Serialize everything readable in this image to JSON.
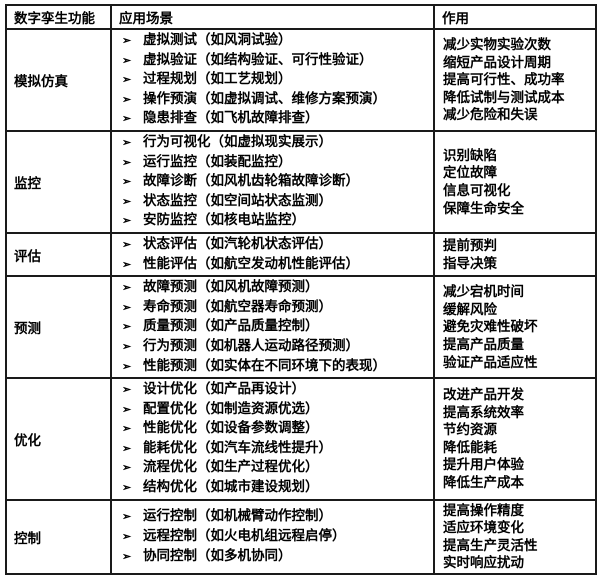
{
  "table": {
    "headers": [
      "数字孪生功能",
      "应用场景",
      "作用"
    ],
    "bullet": "➢",
    "rows": [
      {
        "function": "模拟仿真",
        "scenarios": [
          "虚拟测试（如风洞试验）",
          "虚拟验证（如结构验证、可行性验证）",
          "过程规划（如工艺规划）",
          "操作预演（如虚拟调试、维修方案预演）",
          "隐患排查（如飞机故障排查）"
        ],
        "effects": [
          "减少实物实验次数",
          "缩短产品设计周期",
          "提高可行性、成功率",
          "降低试制与测试成本",
          "减少危险和失误"
        ]
      },
      {
        "function": "监控",
        "scenarios": [
          "行为可视化（如虚拟现实展示）",
          "运行监控（如装配监控）",
          "故障诊断（如风机齿轮箱故障诊断）",
          "状态监控（如空间站状态监测）",
          "安防监控（如核电站监控）"
        ],
        "effects": [
          "识别缺陷",
          "定位故障",
          "信息可视化",
          "保障生命安全"
        ]
      },
      {
        "function": "评估",
        "scenarios": [
          "状态评估（如汽轮机状态评估）",
          "性能评估（如航空发动机性能评估）"
        ],
        "effects": [
          "提前预判",
          "指导决策"
        ]
      },
      {
        "function": "预测",
        "scenarios": [
          "故障预测（如风机故障预测）",
          "寿命预测（如航空器寿命预测）",
          "质量预测（如产品质量控制）",
          "行为预测（如机器人运动路径预测）",
          "性能预测（如实体在不同环境下的表现）"
        ],
        "effects": [
          "减少宕机时间",
          "缓解风险",
          "避免灾难性破坏",
          "提高产品质量",
          "验证产品适应性"
        ]
      },
      {
        "function": "优化",
        "scenarios": [
          "设计优化（如产品再设计）",
          "配置优化（如制造资源优选）",
          "性能优化（如设备参数调整）",
          "能耗优化（如汽车流线性提升）",
          "流程优化（如生产过程优化）",
          "结构优化（如城市建设规划）"
        ],
        "effects": [
          "改进产品开发",
          "提高系统效率",
          "节约资源",
          "降低能耗",
          "提升用户体验",
          "降低生产成本"
        ]
      },
      {
        "function": "控制",
        "scenarios": [
          "运行控制（如机械臂动作控制）",
          "远程控制（如火电机组远程启停）",
          "协同控制（如多机协同）"
        ],
        "effects": [
          "提高操作精度",
          "适应环境变化",
          "提高生产灵活性",
          "实时响应扰动"
        ]
      }
    ]
  }
}
